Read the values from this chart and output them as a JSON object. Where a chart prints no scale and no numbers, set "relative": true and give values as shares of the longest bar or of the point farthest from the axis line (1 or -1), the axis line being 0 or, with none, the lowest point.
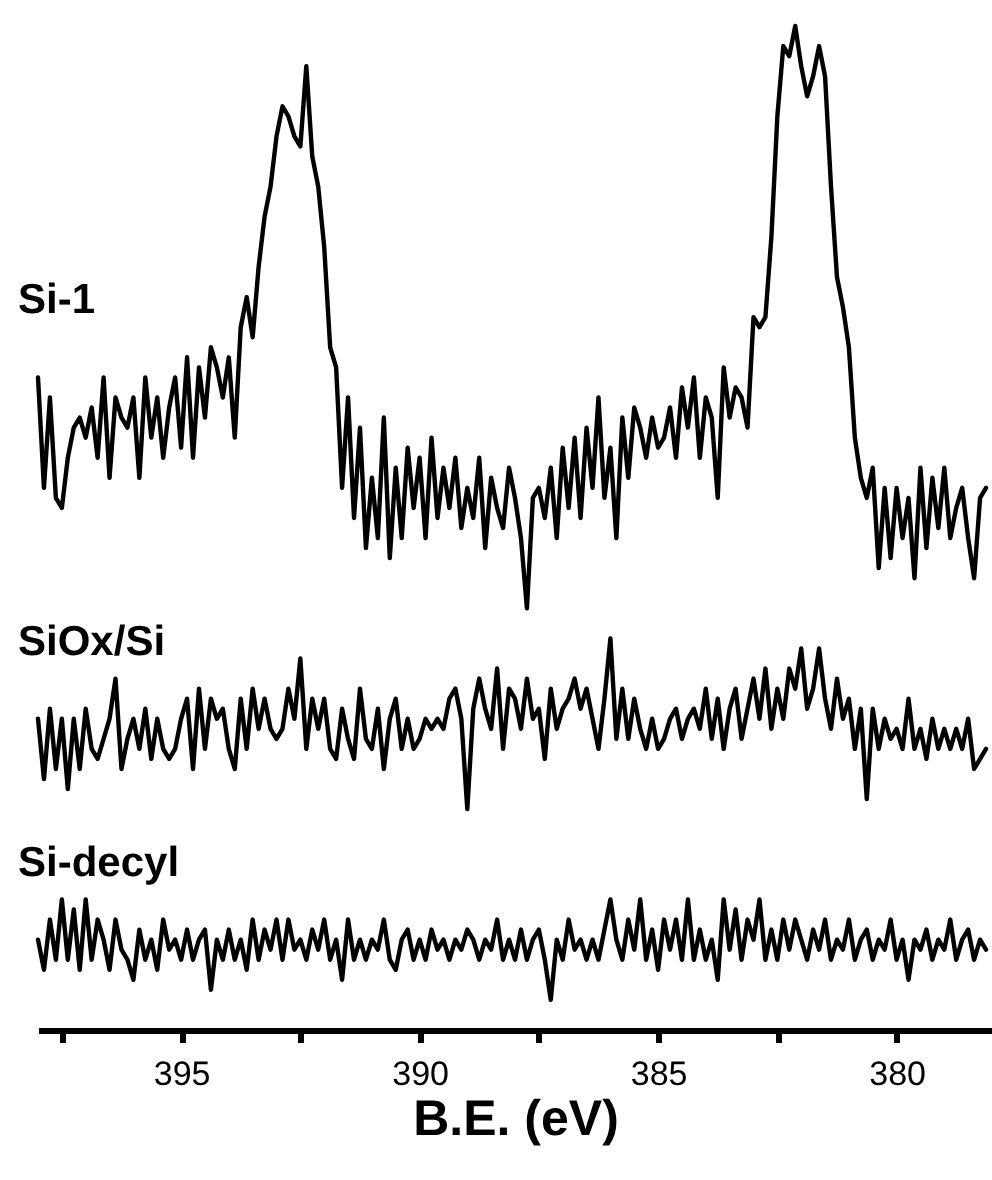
{
  "chart_data": {
    "type": "line",
    "relative": true,
    "xlabel": "B.E. (eV)",
    "xlim": [
      398,
      378
    ],
    "xticks": [
      {
        "value": 397.5,
        "label": null
      },
      395,
      {
        "value": 392.5,
        "label": null
      },
      390,
      {
        "value": 387.5,
        "label": null
      },
      385,
      {
        "value": 382.5,
        "label": null
      },
      380
    ],
    "tick_labels": "x",
    "x": [
      398,
      397.875,
      397.75,
      397.625,
      397.5,
      397.375,
      397.25,
      397.125,
      397,
      396.875,
      396.75,
      396.625,
      396.5,
      396.375,
      396.25,
      396.125,
      396,
      395.875,
      395.75,
      395.625,
      395.5,
      395.375,
      395.25,
      395.125,
      395,
      394.875,
      394.75,
      394.625,
      394.5,
      394.375,
      394.25,
      394.125,
      394,
      393.875,
      393.75,
      393.625,
      393.5,
      393.375,
      393.25,
      393.125,
      393,
      392.875,
      392.75,
      392.625,
      392.5,
      392.375,
      392.25,
      392.125,
      392,
      391.875,
      391.75,
      391.625,
      391.5,
      391.375,
      391.25,
      391.125,
      391,
      390.875,
      390.75,
      390.625,
      390.5,
      390.375,
      390.25,
      390.125,
      390,
      389.875,
      389.75,
      389.625,
      389.5,
      389.375,
      389.25,
      389.125,
      389,
      388.875,
      388.75,
      388.625,
      388.5,
      388.375,
      388.25,
      388.125,
      388,
      387.875,
      387.75,
      387.625,
      387.5,
      387.375,
      387.25,
      387.125,
      387,
      386.875,
      386.75,
      386.625,
      386.5,
      386.375,
      386.25,
      386.125,
      386,
      385.875,
      385.75,
      385.625,
      385.5,
      385.375,
      385.25,
      385.125,
      385,
      384.875,
      384.75,
      384.625,
      384.5,
      384.375,
      384.25,
      384.125,
      384,
      383.875,
      383.75,
      383.625,
      383.5,
      383.375,
      383.25,
      383.125,
      383,
      382.875,
      382.75,
      382.625,
      382.5,
      382.375,
      382.25,
      382.125,
      382,
      381.875,
      381.75,
      381.625,
      381.5,
      381.375,
      381.25,
      381.125,
      381,
      380.875,
      380.75,
      380.625,
      380.5,
      380.375,
      380.25,
      380.125,
      380,
      379.875,
      379.75,
      379.625,
      379.5,
      379.375,
      379.25,
      379.125,
      379,
      378.875,
      378.75,
      378.625,
      378.5,
      378.375,
      378.25,
      378.125
    ],
    "series": [
      {
        "name": "Si-1",
        "color": "#000000",
        "values": [
          0.65,
          0.54,
          0.63,
          0.53,
          0.52,
          0.57,
          0.6,
          0.61,
          0.59,
          0.62,
          0.57,
          0.65,
          0.55,
          0.63,
          0.61,
          0.6,
          0.63,
          0.55,
          0.65,
          0.59,
          0.63,
          0.57,
          0.62,
          0.65,
          0.58,
          0.67,
          0.57,
          0.66,
          0.61,
          0.68,
          0.66,
          0.63,
          0.67,
          0.59,
          0.7,
          0.73,
          0.69,
          0.76,
          0.81,
          0.84,
          0.89,
          0.92,
          0.91,
          0.89,
          0.88,
          0.96,
          0.87,
          0.84,
          0.78,
          0.68,
          0.66,
          0.54,
          0.63,
          0.51,
          0.6,
          0.48,
          0.55,
          0.49,
          0.61,
          0.47,
          0.56,
          0.49,
          0.58,
          0.52,
          0.57,
          0.49,
          0.59,
          0.51,
          0.56,
          0.52,
          0.57,
          0.5,
          0.54,
          0.51,
          0.57,
          0.48,
          0.55,
          0.52,
          0.5,
          0.56,
          0.53,
          0.49,
          0.42,
          0.53,
          0.54,
          0.51,
          0.56,
          0.49,
          0.58,
          0.52,
          0.59,
          0.51,
          0.6,
          0.54,
          0.63,
          0.53,
          0.58,
          0.49,
          0.61,
          0.55,
          0.62,
          0.6,
          0.57,
          0.61,
          0.58,
          0.59,
          0.62,
          0.57,
          0.64,
          0.6,
          0.65,
          0.57,
          0.63,
          0.61,
          0.53,
          0.66,
          0.61,
          0.64,
          0.63,
          0.6,
          0.71,
          0.7,
          0.71,
          0.79,
          0.91,
          0.98,
          0.97,
          1,
          0.96,
          0.93,
          0.95,
          0.98,
          0.95,
          0.84,
          0.75,
          0.72,
          0.68,
          0.59,
          0.55,
          0.53,
          0.56,
          0.46,
          0.54,
          0.47,
          0.54,
          0.49,
          0.53,
          0.45,
          0.56,
          0.48,
          0.55,
          0.5,
          0.56,
          0.49,
          0.52,
          0.54,
          0.49,
          0.45,
          0.53,
          0.54
        ]
      },
      {
        "name": "SiOx/Si",
        "color": "#000000",
        "values": [
          0.31,
          0.25,
          0.32,
          0.26,
          0.31,
          0.24,
          0.31,
          0.26,
          0.32,
          0.28,
          0.27,
          0.29,
          0.31,
          0.35,
          0.26,
          0.29,
          0.31,
          0.28,
          0.32,
          0.27,
          0.31,
          0.28,
          0.27,
          0.28,
          0.31,
          0.33,
          0.26,
          0.34,
          0.28,
          0.33,
          0.31,
          0.32,
          0.28,
          0.26,
          0.33,
          0.28,
          0.34,
          0.3,
          0.33,
          0.3,
          0.29,
          0.3,
          0.34,
          0.31,
          0.37,
          0.28,
          0.33,
          0.3,
          0.33,
          0.28,
          0.27,
          0.32,
          0.29,
          0.27,
          0.34,
          0.29,
          0.28,
          0.32,
          0.26,
          0.31,
          0.33,
          0.28,
          0.31,
          0.28,
          0.29,
          0.31,
          0.3,
          0.31,
          0.3,
          0.33,
          0.34,
          0.31,
          0.22,
          0.32,
          0.35,
          0.32,
          0.3,
          0.36,
          0.28,
          0.34,
          0.33,
          0.3,
          0.35,
          0.31,
          0.32,
          0.27,
          0.34,
          0.3,
          0.32,
          0.33,
          0.35,
          0.32,
          0.34,
          0.31,
          0.28,
          0.33,
          0.39,
          0.29,
          0.34,
          0.29,
          0.33,
          0.3,
          0.28,
          0.31,
          0.28,
          0.29,
          0.31,
          0.32,
          0.29,
          0.31,
          0.32,
          0.3,
          0.34,
          0.29,
          0.33,
          0.28,
          0.32,
          0.34,
          0.29,
          0.32,
          0.35,
          0.31,
          0.36,
          0.3,
          0.34,
          0.31,
          0.36,
          0.34,
          0.38,
          0.32,
          0.34,
          0.38,
          0.33,
          0.3,
          0.35,
          0.31,
          0.33,
          0.28,
          0.32,
          0.23,
          0.32,
          0.28,
          0.31,
          0.29,
          0.3,
          0.28,
          0.33,
          0.28,
          0.3,
          0.27,
          0.31,
          0.28,
          0.3,
          0.28,
          0.3,
          0.28,
          0.31,
          0.26,
          0.27,
          0.28
        ]
      },
      {
        "name": "Si-decyl",
        "color": "#000000",
        "values": [
          0.09,
          0.06,
          0.11,
          0.07,
          0.13,
          0.07,
          0.12,
          0.06,
          0.13,
          0.07,
          0.11,
          0.09,
          0.06,
          0.11,
          0.08,
          0.07,
          0.05,
          0.1,
          0.07,
          0.09,
          0.06,
          0.11,
          0.08,
          0.09,
          0.07,
          0.1,
          0.07,
          0.09,
          0.1,
          0.04,
          0.09,
          0.07,
          0.1,
          0.07,
          0.09,
          0.06,
          0.11,
          0.07,
          0.1,
          0.08,
          0.11,
          0.07,
          0.11,
          0.08,
          0.09,
          0.07,
          0.1,
          0.08,
          0.11,
          0.07,
          0.09,
          0.05,
          0.11,
          0.07,
          0.09,
          0.07,
          0.09,
          0.08,
          0.11,
          0.07,
          0.06,
          0.09,
          0.1,
          0.07,
          0.09,
          0.07,
          0.1,
          0.08,
          0.09,
          0.07,
          0.09,
          0.08,
          0.1,
          0.09,
          0.07,
          0.09,
          0.08,
          0.11,
          0.07,
          0.09,
          0.07,
          0.1,
          0.07,
          0.09,
          0.1,
          0.07,
          0.03,
          0.09,
          0.07,
          0.11,
          0.08,
          0.09,
          0.07,
          0.09,
          0.07,
          0.1,
          0.13,
          0.09,
          0.07,
          0.11,
          0.08,
          0.13,
          0.07,
          0.1,
          0.06,
          0.11,
          0.08,
          0.11,
          0.07,
          0.13,
          0.07,
          0.1,
          0.07,
          0.09,
          0.05,
          0.13,
          0.08,
          0.12,
          0.07,
          0.11,
          0.09,
          0.13,
          0.07,
          0.1,
          0.07,
          0.11,
          0.08,
          0.11,
          0.09,
          0.07,
          0.1,
          0.08,
          0.11,
          0.07,
          0.09,
          0.08,
          0.11,
          0.07,
          0.09,
          0.1,
          0.07,
          0.09,
          0.08,
          0.11,
          0.07,
          0.09,
          0.05,
          0.09,
          0.08,
          0.1,
          0.07,
          0.09,
          0.08,
          0.11,
          0.07,
          0.09,
          0.1,
          0.07,
          0.09,
          0.08
        ]
      }
    ],
    "line_style": "solid",
    "marker": "none"
  }
}
